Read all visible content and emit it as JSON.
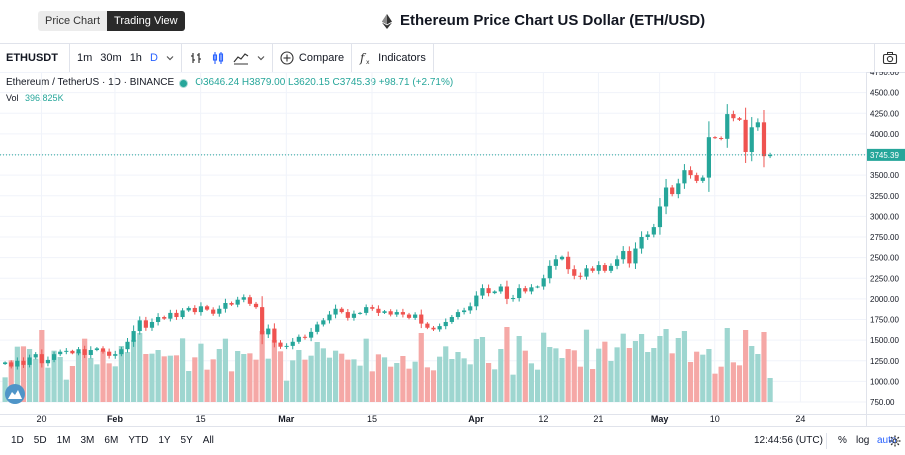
{
  "header": {
    "tabs": [
      {
        "label": "Price Chart",
        "active": false
      },
      {
        "label": "Trading View",
        "active": true
      }
    ],
    "title": "Ethereum Price Chart US Dollar (ETH/USD)"
  },
  "toolbar": {
    "symbol": "ETHUSDT",
    "intervals": [
      "1m",
      "30m",
      "1h",
      "D"
    ],
    "active_interval": "D",
    "compare_label": "Compare",
    "indicators_label": "Indicators"
  },
  "legend": {
    "symbol_text": "Ethereum / TetherUS · 1D · BINANCE",
    "ohlc": "O3646.24 H3879.00 L3620.15 C3745.39 +98.71 (+2.71%)",
    "volume_label": "Vol",
    "volume_value": "396.825K"
  },
  "bottom": {
    "ranges": [
      "1D",
      "5D",
      "1M",
      "3M",
      "6M",
      "YTD",
      "1Y",
      "5Y",
      "All"
    ],
    "clock": "12:44:56 (UTC)",
    "percent_label": "%",
    "log_label": "log",
    "auto_label": "auto"
  },
  "colors": {
    "up": "#26a69a",
    "down": "#ef5350",
    "up_vol": "#9ed6d0",
    "down_vol": "#f5a8a6",
    "accent": "#2962ff"
  },
  "chart_data": {
    "type": "candlestick",
    "y_ticks": [
      "4750.00",
      "4500.00",
      "4250.00",
      "4000.00",
      "3750.00",
      "3500.00",
      "3250.00",
      "3000.00",
      "2750.00",
      "2500.00",
      "2250.00",
      "2000.00",
      "1750.00",
      "1500.00",
      "1250.00",
      "1000.00",
      "750.00"
    ],
    "ylim": [
      750,
      4750
    ],
    "x_ticks": [
      {
        "label": "20",
        "index": 6
      },
      {
        "label": "Feb",
        "index": 18
      },
      {
        "label": "15",
        "index": 32
      },
      {
        "label": "Mar",
        "index": 46
      },
      {
        "label": "15",
        "index": 60
      },
      {
        "label": "Apr",
        "index": 77
      },
      {
        "label": "12",
        "index": 88
      },
      {
        "label": "21",
        "index": 97
      },
      {
        "label": "May",
        "index": 107
      },
      {
        "label": "10",
        "index": 116
      },
      {
        "label": "24",
        "index": 130
      }
    ],
    "last_price": "3745.39",
    "last_close": 3745.39,
    "closes": [
      1230,
      1180,
      1250,
      1200,
      1290,
      1330,
      1220,
      1260,
      1330,
      1360,
      1370,
      1340,
      1390,
      1320,
      1380,
      1400,
      1360,
      1310,
      1330,
      1390,
      1480,
      1610,
      1740,
      1650,
      1720,
      1780,
      1760,
      1830,
      1780,
      1860,
      1890,
      1840,
      1910,
      1870,
      1820,
      1880,
      1950,
      1930,
      1990,
      2020,
      1940,
      1900,
      1570,
      1640,
      1470,
      1420,
      1430,
      1480,
      1540,
      1530,
      1600,
      1690,
      1740,
      1810,
      1880,
      1840,
      1770,
      1820,
      1830,
      1900,
      1880,
      1830,
      1850,
      1810,
      1840,
      1810,
      1770,
      1810,
      1700,
      1650,
      1630,
      1670,
      1720,
      1780,
      1840,
      1860,
      1910,
      2040,
      2130,
      2070,
      2090,
      2150,
      2000,
      2010,
      2130,
      2090,
      2140,
      2150,
      2250,
      2400,
      2480,
      2510,
      2360,
      2280,
      2270,
      2370,
      2340,
      2410,
      2340,
      2400,
      2480,
      2580,
      2430,
      2610,
      2750,
      2780,
      2870,
      3120,
      3350,
      3270,
      3400,
      3560,
      3500,
      3430,
      3470,
      3960,
      3950,
      3940,
      4240,
      4190,
      4170,
      3780,
      4080,
      4140,
      3730,
      3745
    ]
  }
}
